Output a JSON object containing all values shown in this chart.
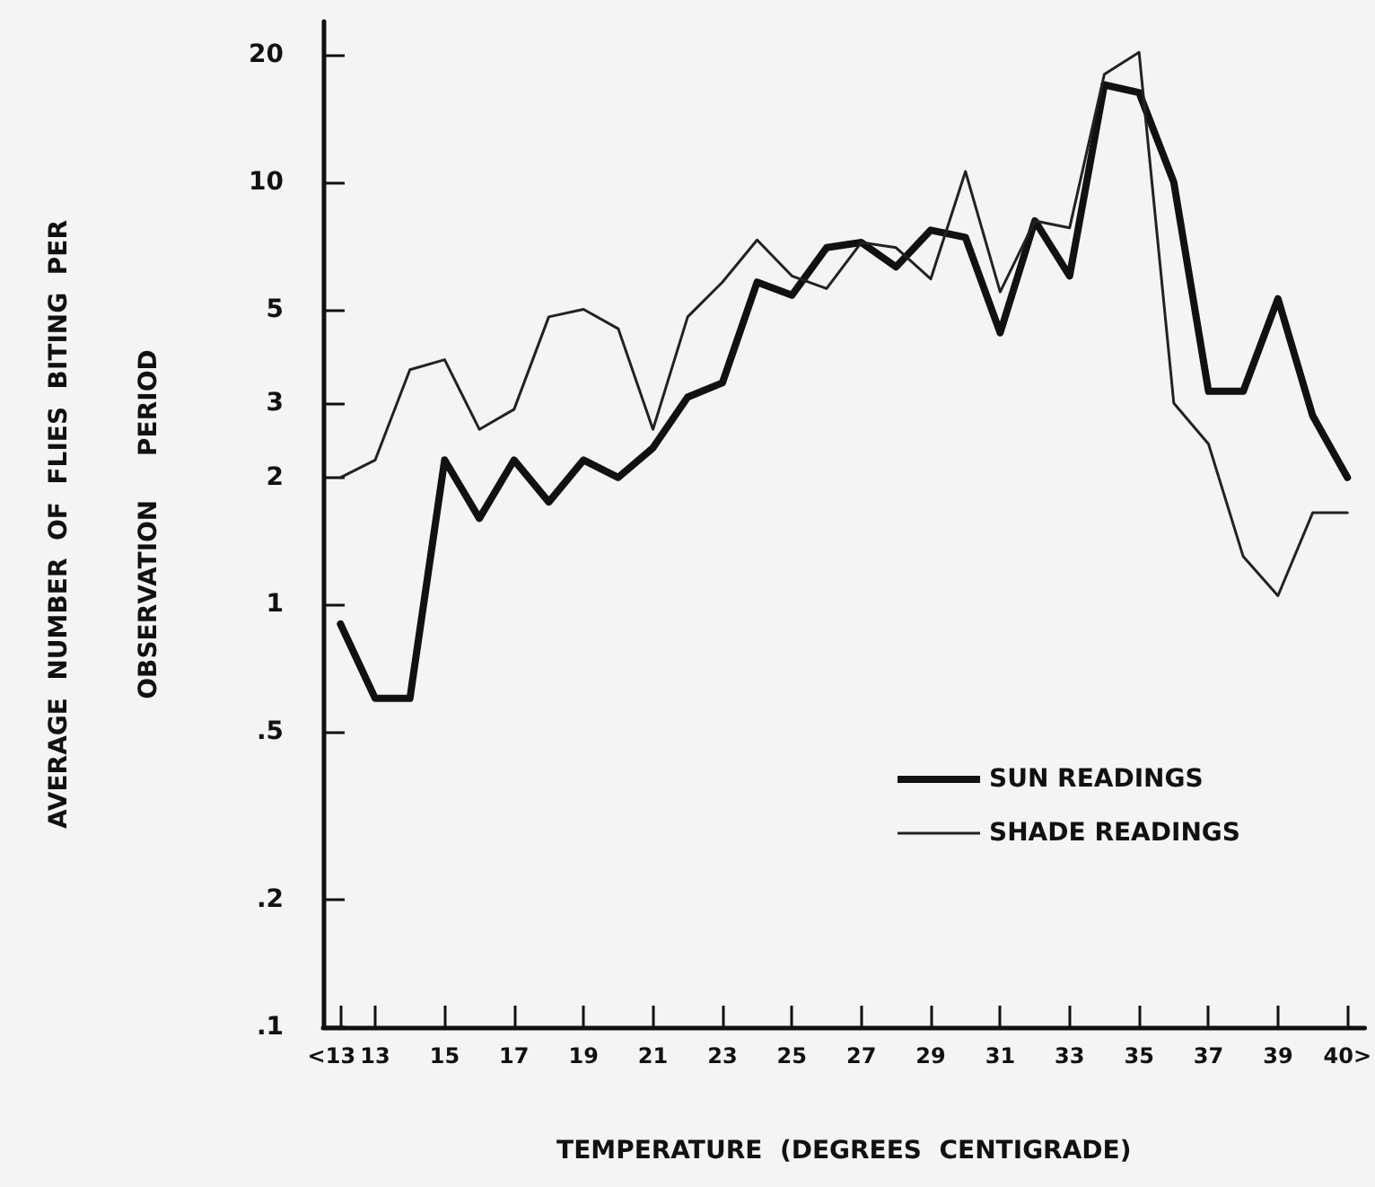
{
  "chart_data": {
    "type": "line",
    "xlabel": "TEMPERATURE  (DEGREES  CENTIGRADE)",
    "ylabel": "AVERAGE  NUMBER  OF  FLIES  BITING  PER\nOBSERVATION     PERIOD",
    "categories": [
      "<13",
      "13",
      null,
      "15",
      null,
      "17",
      null,
      "19",
      null,
      "21",
      null,
      "23",
      null,
      "25",
      null,
      "27",
      null,
      "29",
      null,
      "31",
      null,
      "33",
      null,
      "35",
      null,
      "37",
      null,
      "39",
      null,
      "40>"
    ],
    "series": [
      {
        "name": "SUN READINGS",
        "color": "#111111",
        "values": [
          0.9,
          0.6,
          0.6,
          2.2,
          1.6,
          2.2,
          1.75,
          2.2,
          2.0,
          2.35,
          3.1,
          3.35,
          5.8,
          5.4,
          7.0,
          7.2,
          6.3,
          7.7,
          7.4,
          4.4,
          8.1,
          6.0,
          17,
          16.3,
          10,
          3.2,
          3.2,
          5.3,
          2.8,
          2.0
        ]
      },
      {
        "name": "SHADE READINGS",
        "color": "#222222",
        "values": [
          2.0,
          2.2,
          3.6,
          3.8,
          2.6,
          2.9,
          4.8,
          5.0,
          4.5,
          2.6,
          4.8,
          5.8,
          7.3,
          6.0,
          5.6,
          7.2,
          7.0,
          5.9,
          10.6,
          5.5,
          8.1,
          7.8,
          18,
          20.3,
          3.0,
          2.4,
          1.3,
          1.05,
          1.65,
          1.65
        ]
      }
    ],
    "log": "y",
    "ylim": [
      0.1,
      24
    ],
    "yticks": [
      {
        "value": 0.1,
        "label": ".1"
      },
      {
        "value": 0.2,
        "label": ".2"
      },
      {
        "value": 0.5,
        "label": ".5"
      },
      1,
      2,
      3,
      5,
      10,
      20
    ],
    "grid": false,
    "legend": "bottom right",
    "marker": "none",
    "line_style": "solid"
  }
}
